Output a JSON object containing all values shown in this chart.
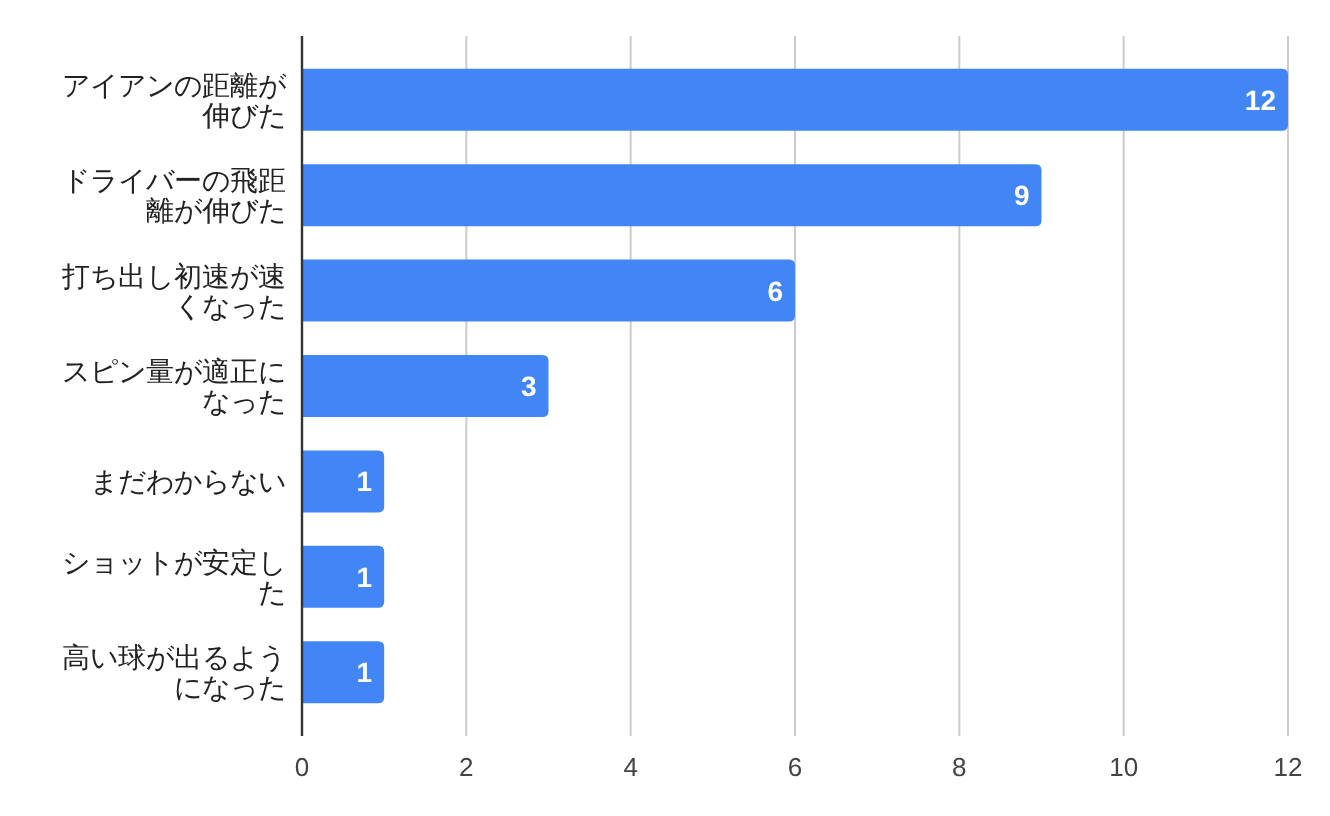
{
  "chart_data": {
    "type": "bar",
    "orientation": "horizontal",
    "categories": [
      "アイアンの距離が伸びた",
      "ドライバーの飛距離が伸びた",
      "打ち出し初速が速くなった",
      "スピン量が適正になった",
      "まだわからない",
      "ショットが安定した",
      "高い球が出るようになった"
    ],
    "values": [
      12,
      9,
      6,
      3,
      1,
      1,
      1
    ],
    "color": "#4285f4",
    "xlim": [
      0,
      12
    ],
    "xticks": [
      0,
      2,
      4,
      6,
      8,
      10,
      12
    ],
    "grid": "x",
    "data_labels": true
  }
}
